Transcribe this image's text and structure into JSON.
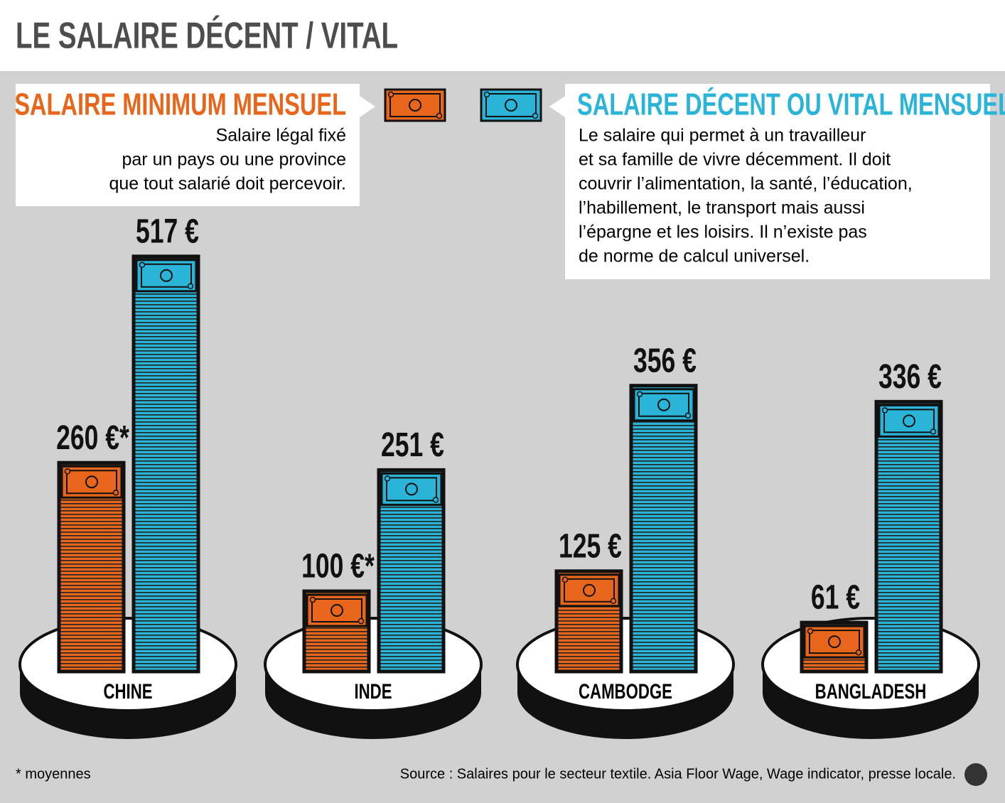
{
  "chart_data": {
    "type": "bar",
    "title": "LE SALAIRE DÉCENT / VITAL",
    "categories": [
      "CHINE",
      "INDE",
      "CAMBODGE",
      "BANGLADESH"
    ],
    "series": [
      {
        "name": "SALAIRE MINIMUM MENSUEL",
        "color": "#e8661c",
        "description": [
          "Salaire légal fixé",
          "par un pays ou une province",
          "que tout salarié doit percevoir."
        ],
        "values": [
          260,
          100,
          125,
          61
        ],
        "value_labels": [
          "260 €*",
          "100 €*",
          "125 €",
          "61 €"
        ]
      },
      {
        "name": "SALAIRE DÉCENT OU VITAL MENSUEL",
        "color": "#29b4d8",
        "description": [
          "Le salaire qui permet à un travailleur",
          "et sa famille de vivre décemment. Il doit",
          "couvrir l’alimentation, la santé, l’éducation,",
          "l’habillement, le transport mais aussi",
          "l’épargne et les loisirs. Il n’existe pas",
          "de norme de calcul universel."
        ],
        "values": [
          517,
          251,
          356,
          336
        ],
        "value_labels": [
          "517 €",
          "251 €",
          "356 €",
          "336 €"
        ]
      }
    ],
    "footnote": "* moyennes",
    "source": "Source : Salaires pour le secteur textile. Asia Floor Wage, Wage indicator, presse locale."
  }
}
